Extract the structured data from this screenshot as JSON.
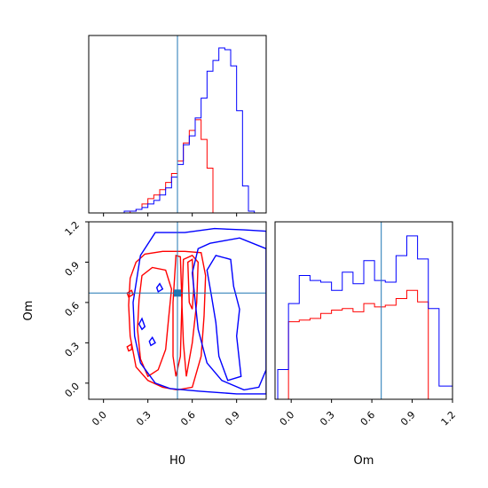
{
  "chart_data": {
    "type": "corner",
    "parameters": [
      "H0",
      "Om"
    ],
    "truth": {
      "H0": 0.5,
      "Om": 0.67
    },
    "truth_color": "#1f77b4",
    "series_colors": [
      "#ff0000",
      "#0000ff"
    ],
    "axes": {
      "H0": {
        "range": [
          -0.1,
          1.1
        ],
        "ticks": [
          "0.0",
          "0.3",
          "0.6",
          "0.9"
        ],
        "tick_values": [
          0.0,
          0.3,
          0.6,
          0.9
        ]
      },
      "Om": {
        "range": [
          -0.12,
          1.2
        ],
        "ticks": [
          "0.0",
          "0.3",
          "0.6",
          "0.9",
          "1.2"
        ],
        "tick_values": [
          0.0,
          0.3,
          0.6,
          0.9,
          1.2
        ]
      }
    },
    "xlabel_bottom_left": "H0",
    "xlabel_bottom_right": "Om",
    "ylabel_left": "Om",
    "hist_H0": {
      "bin_edges": [
        0.1,
        0.14,
        0.18,
        0.22,
        0.26,
        0.3,
        0.34,
        0.38,
        0.42,
        0.46,
        0.5,
        0.54,
        0.58,
        0.62,
        0.66,
        0.7,
        0.74,
        0.78,
        0.82,
        0.86,
        0.9,
        0.94,
        0.98,
        1.02,
        1.06,
        1.1
      ],
      "series": [
        {
          "color": "#ff0000",
          "counts": [
            0,
            0,
            0.01,
            0.02,
            0.05,
            0.08,
            0.1,
            0.13,
            0.17,
            0.22,
            0.29,
            0.39,
            0.46,
            0.52,
            0.41,
            0.25,
            0,
            0,
            0,
            0,
            0,
            0,
            0,
            0,
            0
          ]
        },
        {
          "color": "#0000ff",
          "counts": [
            0,
            0.01,
            0.01,
            0.02,
            0.03,
            0.05,
            0.07,
            0.1,
            0.14,
            0.2,
            0.27,
            0.38,
            0.43,
            0.53,
            0.64,
            0.79,
            0.85,
            0.92,
            0.91,
            0.82,
            0.57,
            0.15,
            0.01,
            0.0,
            0.0
          ]
        }
      ]
    },
    "hist_Om": {
      "bin_edges": [
        -0.1,
        -0.02,
        0.06,
        0.14,
        0.22,
        0.3,
        0.38,
        0.46,
        0.54,
        0.62,
        0.7,
        0.78,
        0.86,
        0.94,
        1.02,
        1.1,
        1.2
      ],
      "series": [
        {
          "color": "#ff0000",
          "counts": [
            0,
            0.47,
            0.48,
            0.49,
            0.52,
            0.54,
            0.55,
            0.53,
            0.58,
            0.56,
            0.57,
            0.61,
            0.66,
            0.59,
            0,
            0
          ]
        },
        {
          "color": "#0000ff",
          "counts": [
            0.18,
            0.58,
            0.75,
            0.72,
            0.71,
            0.66,
            0.77,
            0.7,
            0.84,
            0.72,
            0.71,
            0.87,
            0.99,
            0.85,
            0.55,
            0.08
          ]
        }
      ]
    },
    "contours": [
      {
        "color": "#ff0000",
        "paths": [
          [
            [
              0.17,
              0.58
            ],
            [
              0.18,
              0.78
            ],
            [
              0.22,
              0.9
            ],
            [
              0.28,
              0.96
            ],
            [
              0.4,
              0.98
            ],
            [
              0.55,
              0.98
            ],
            [
              0.66,
              0.97
            ],
            [
              0.69,
              0.8
            ],
            [
              0.68,
              0.5
            ],
            [
              0.66,
              0.2
            ],
            [
              0.6,
              -0.03
            ],
            [
              0.5,
              -0.05
            ],
            [
              0.4,
              -0.03
            ],
            [
              0.3,
              0.02
            ],
            [
              0.22,
              0.12
            ],
            [
              0.18,
              0.35
            ],
            [
              0.17,
              0.58
            ]
          ],
          [
            [
              0.24,
              0.62
            ],
            [
              0.26,
              0.8
            ],
            [
              0.33,
              0.86
            ],
            [
              0.42,
              0.84
            ],
            [
              0.46,
              0.7
            ],
            [
              0.44,
              0.48
            ],
            [
              0.42,
              0.25
            ],
            [
              0.37,
              0.1
            ],
            [
              0.3,
              0.05
            ],
            [
              0.25,
              0.18
            ],
            [
              0.23,
              0.4
            ],
            [
              0.24,
              0.62
            ]
          ],
          [
            [
              0.54,
              0.92
            ],
            [
              0.6,
              0.95
            ],
            [
              0.64,
              0.9
            ],
            [
              0.63,
              0.6
            ],
            [
              0.6,
              0.3
            ],
            [
              0.56,
              0.05
            ],
            [
              0.54,
              0.3
            ],
            [
              0.53,
              0.6
            ],
            [
              0.54,
              0.92
            ]
          ],
          [
            [
              0.49,
              0.95
            ],
            [
              0.52,
              0.94
            ],
            [
              0.53,
              0.6
            ],
            [
              0.52,
              0.2
            ],
            [
              0.49,
              0.05
            ],
            [
              0.47,
              0.2
            ],
            [
              0.47,
              0.6
            ],
            [
              0.49,
              0.95
            ]
          ],
          [
            [
              0.16,
              0.67
            ],
            [
              0.19,
              0.69
            ],
            [
              0.2,
              0.66
            ],
            [
              0.17,
              0.64
            ],
            [
              0.16,
              0.67
            ]
          ],
          [
            [
              0.16,
              0.27
            ],
            [
              0.19,
              0.29
            ],
            [
              0.19,
              0.25
            ],
            [
              0.17,
              0.24
            ],
            [
              0.16,
              0.27
            ]
          ],
          [
            [
              0.57,
              0.9
            ],
            [
              0.6,
              0.92
            ],
            [
              0.61,
              0.7
            ],
            [
              0.6,
              0.55
            ],
            [
              0.58,
              0.6
            ],
            [
              0.57,
              0.9
            ]
          ]
        ]
      },
      {
        "color": "#0000ff",
        "paths": [
          [
            [
              0.2,
              0.6
            ],
            [
              0.25,
              0.95
            ],
            [
              0.35,
              1.12
            ],
            [
              0.55,
              1.12
            ],
            [
              0.75,
              1.15
            ],
            [
              0.95,
              1.14
            ],
            [
              1.1,
              1.13
            ],
            [
              1.1,
              -0.08
            ],
            [
              0.9,
              -0.08
            ],
            [
              0.65,
              -0.06
            ],
            [
              0.45,
              -0.04
            ],
            [
              0.35,
              0.0
            ],
            [
              0.25,
              0.15
            ],
            [
              0.21,
              0.35
            ],
            [
              0.2,
              0.6
            ]
          ],
          [
            [
              0.6,
              0.82
            ],
            [
              0.64,
              1.0
            ],
            [
              0.72,
              1.04
            ],
            [
              0.82,
              1.06
            ],
            [
              0.92,
              1.08
            ],
            [
              1.1,
              1.0
            ],
            [
              1.1,
              0.1
            ],
            [
              1.05,
              -0.03
            ],
            [
              0.95,
              -0.05
            ],
            [
              0.8,
              0.02
            ],
            [
              0.7,
              0.15
            ],
            [
              0.64,
              0.4
            ],
            [
              0.6,
              0.82
            ]
          ],
          [
            [
              0.7,
              0.84
            ],
            [
              0.76,
              0.95
            ],
            [
              0.86,
              0.92
            ],
            [
              0.88,
              0.72
            ],
            [
              0.92,
              0.55
            ],
            [
              0.9,
              0.35
            ],
            [
              0.93,
              0.05
            ],
            [
              0.84,
              0.02
            ],
            [
              0.78,
              0.2
            ],
            [
              0.76,
              0.45
            ],
            [
              0.73,
              0.65
            ],
            [
              0.7,
              0.84
            ]
          ],
          [
            [
              0.24,
              0.44
            ],
            [
              0.26,
              0.48
            ],
            [
              0.28,
              0.42
            ],
            [
              0.26,
              0.4
            ],
            [
              0.24,
              0.44
            ]
          ],
          [
            [
              0.31,
              0.31
            ],
            [
              0.33,
              0.34
            ],
            [
              0.35,
              0.3
            ],
            [
              0.32,
              0.28
            ],
            [
              0.31,
              0.31
            ]
          ],
          [
            [
              0.36,
              0.71
            ],
            [
              0.38,
              0.74
            ],
            [
              0.4,
              0.7
            ],
            [
              0.37,
              0.68
            ],
            [
              0.36,
              0.71
            ]
          ]
        ]
      }
    ]
  }
}
